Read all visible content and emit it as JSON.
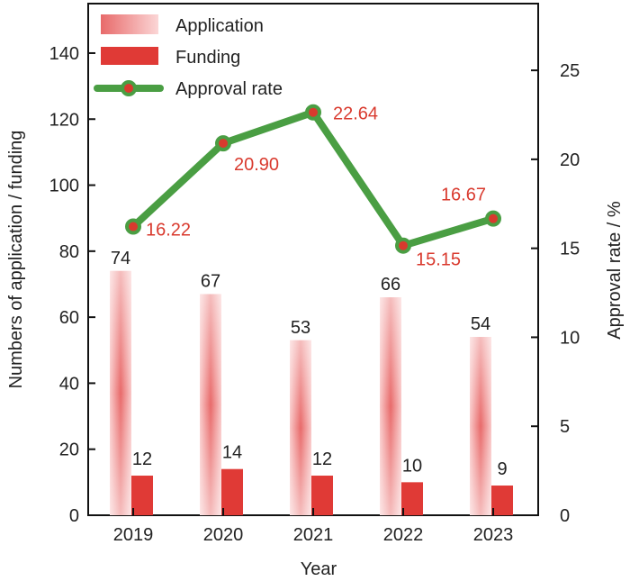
{
  "chart_data": {
    "type": "bar",
    "categories": [
      "2019",
      "2020",
      "2021",
      "2022",
      "2023"
    ],
    "series": [
      {
        "name": "Application",
        "kind": "bar",
        "axis": "left",
        "values": [
          74,
          67,
          53,
          66,
          54
        ]
      },
      {
        "name": "Funding",
        "kind": "bar",
        "axis": "left",
        "values": [
          12,
          14,
          12,
          10,
          9
        ]
      },
      {
        "name": "Approval rate",
        "kind": "line",
        "axis": "right",
        "values": [
          16.22,
          20.9,
          22.64,
          15.15,
          16.67
        ],
        "labels": [
          "16.22",
          "20.90",
          "22.64",
          "15.15",
          "16.67"
        ]
      }
    ],
    "xlabel": "Year",
    "ylabel": "Numbers of application / funding",
    "y2label": "Approval rate / %",
    "ylim": [
      0,
      155
    ],
    "y2lim": [
      0,
      28.75
    ],
    "yticks": [
      0,
      20,
      40,
      60,
      80,
      100,
      120,
      140
    ],
    "y2ticks": [
      0,
      5,
      10,
      15,
      20,
      25
    ],
    "grid": false,
    "legend_position": "top-left",
    "colors": {
      "application": "#e85d5d",
      "funding": "#e03a36",
      "approval_line": "#4a9e43",
      "approval_marker": "#d93a2e",
      "rate_label": "#d93a2e"
    }
  }
}
